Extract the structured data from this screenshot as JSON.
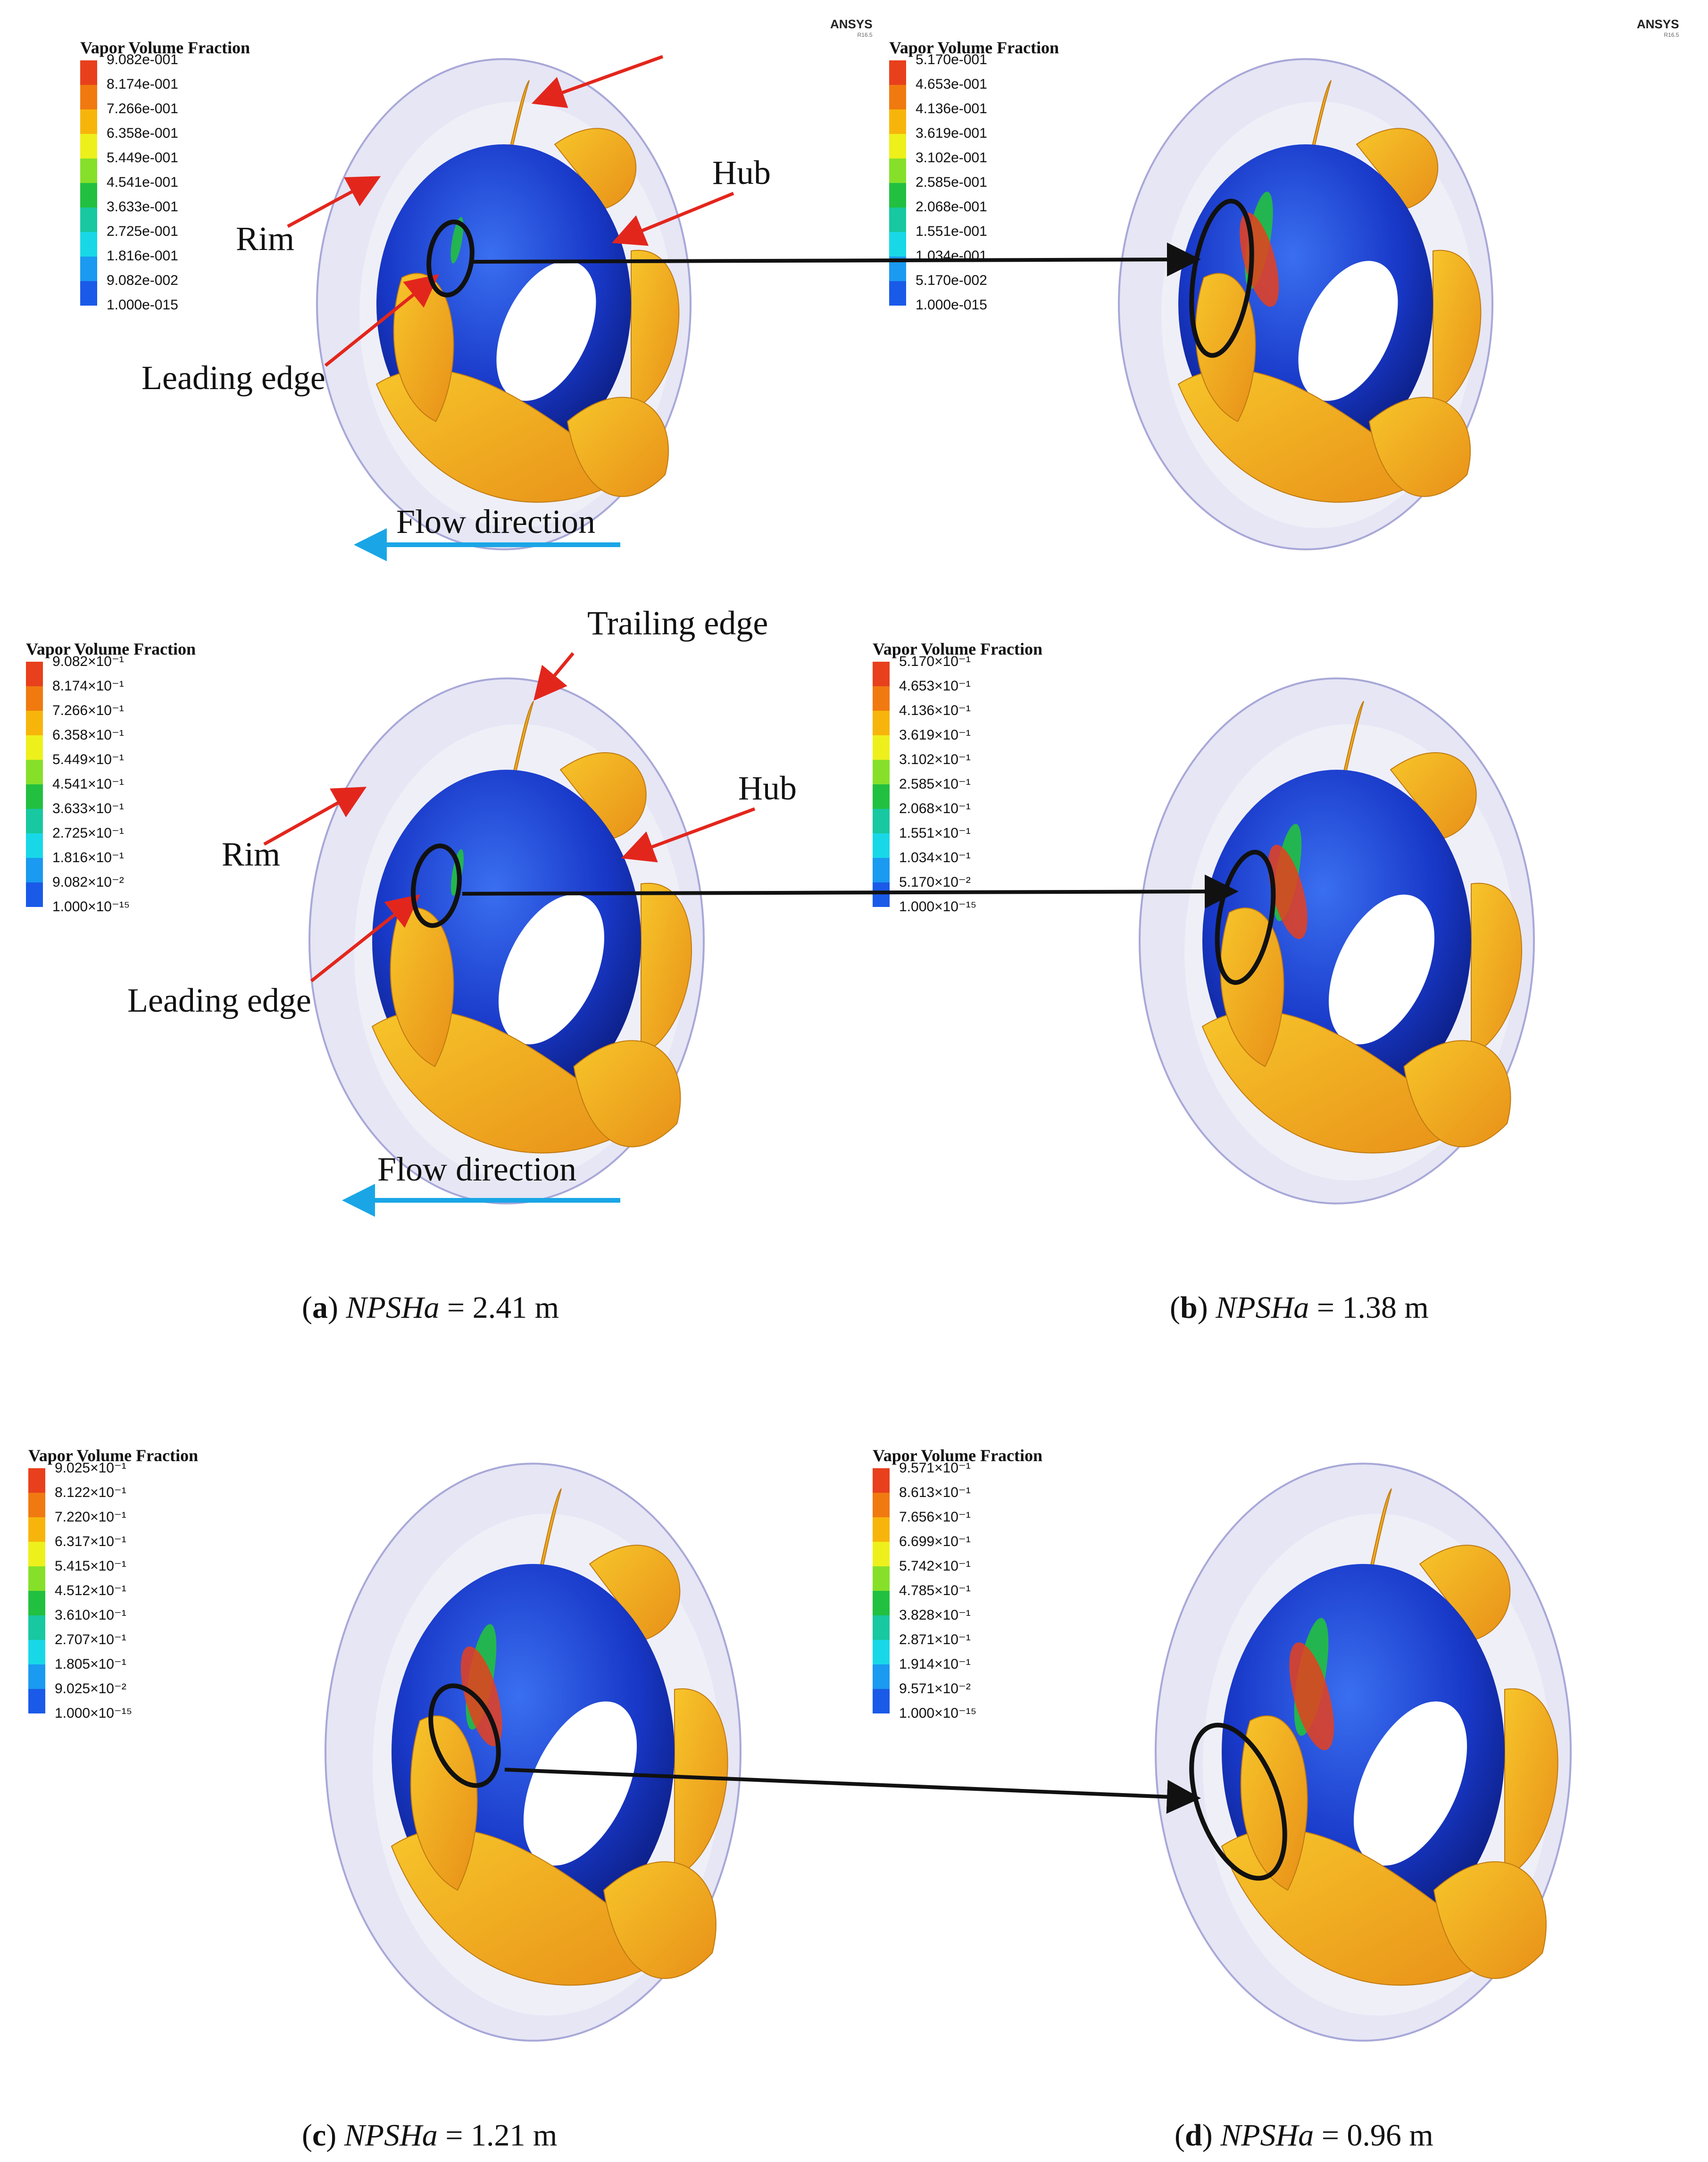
{
  "ansys_logo": {
    "text": "ANSYS",
    "version": "R16.5"
  },
  "panels": {
    "row1_left": {
      "legend_title": "Vapor Volume Fraction",
      "legend_values": [
        "9.082e-001",
        "8.174e-001",
        "7.266e-001",
        "6.358e-001",
        "5.449e-001",
        "4.541e-001",
        "3.633e-001",
        "2.725e-001",
        "1.816e-001",
        "9.082e-002",
        "1.000e-015"
      ],
      "labels": {
        "rim": "Rim",
        "hub": "Hub",
        "leading_edge": "Leading edge",
        "flow_direction": "Flow direction"
      }
    },
    "row1_right": {
      "legend_title": "Vapor Volume Fraction",
      "legend_values": [
        "5.170e-001",
        "4.653e-001",
        "4.136e-001",
        "3.619e-001",
        "3.102e-001",
        "2.585e-001",
        "2.068e-001",
        "1.551e-001",
        "1.034e-001",
        "5.170e-002",
        "1.000e-015"
      ]
    },
    "a": {
      "legend_title": "Vapor Volume Fraction",
      "legend_values": [
        "9.082×10⁻¹",
        "8.174×10⁻¹",
        "7.266×10⁻¹",
        "6.358×10⁻¹",
        "5.449×10⁻¹",
        "4.541×10⁻¹",
        "3.633×10⁻¹",
        "2.725×10⁻¹",
        "1.816×10⁻¹",
        "9.082×10⁻²",
        "1.000×10⁻¹⁵"
      ],
      "labels": {
        "trailing_edge": "Trailing edge",
        "rim": "Rim",
        "hub": "Hub",
        "leading_edge": "Leading edge",
        "flow_direction": "Flow direction"
      },
      "caption": {
        "letter": "a",
        "var": "NPSHa",
        "rest": " = 2.41 m"
      }
    },
    "b": {
      "legend_title": "Vapor Volume Fraction",
      "legend_values": [
        "5.170×10⁻¹",
        "4.653×10⁻¹",
        "4.136×10⁻¹",
        "3.619×10⁻¹",
        "3.102×10⁻¹",
        "2.585×10⁻¹",
        "2.068×10⁻¹",
        "1.551×10⁻¹",
        "1.034×10⁻¹",
        "5.170×10⁻²",
        "1.000×10⁻¹⁵"
      ],
      "caption": {
        "letter": "b",
        "var": "NPSHa",
        "rest": " = 1.38 m"
      }
    },
    "c": {
      "legend_title": "Vapor Volume Fraction",
      "legend_values": [
        "9.025×10⁻¹",
        "8.122×10⁻¹",
        "7.220×10⁻¹",
        "6.317×10⁻¹",
        "5.415×10⁻¹",
        "4.512×10⁻¹",
        "3.610×10⁻¹",
        "2.707×10⁻¹",
        "1.805×10⁻¹",
        "9.025×10⁻²",
        "1.000×10⁻¹⁵"
      ],
      "caption": {
        "letter": "c",
        "var": "NPSHa",
        "rest": " = 1.21 m"
      }
    },
    "d": {
      "legend_title": "Vapor Volume Fraction",
      "legend_values": [
        "9.571×10⁻¹",
        "8.613×10⁻¹",
        "7.656×10⁻¹",
        "6.699×10⁻¹",
        "5.742×10⁻¹",
        "4.785×10⁻¹",
        "3.828×10⁻¹",
        "2.871×10⁻¹",
        "1.914×10⁻¹",
        "9.571×10⁻²",
        "1.000×10⁻¹⁵"
      ],
      "caption": {
        "letter": "d",
        "var": "NPSHa",
        "rest": " = 0.96 m"
      }
    }
  },
  "colormap": [
    "#e8401c",
    "#f07a10",
    "#f7b50c",
    "#eef01c",
    "#86e02a",
    "#22c040",
    "#18c8a0",
    "#18d8e8",
    "#1a9af0",
    "#1a5ae8",
    "#1a2fd8"
  ],
  "colors": {
    "annotation_arrow": "#e3261c",
    "flow_arrow": "#1aa6e6",
    "hub": "#1838c8",
    "blade": "#f2a920",
    "casing": "#c8c8e8"
  }
}
